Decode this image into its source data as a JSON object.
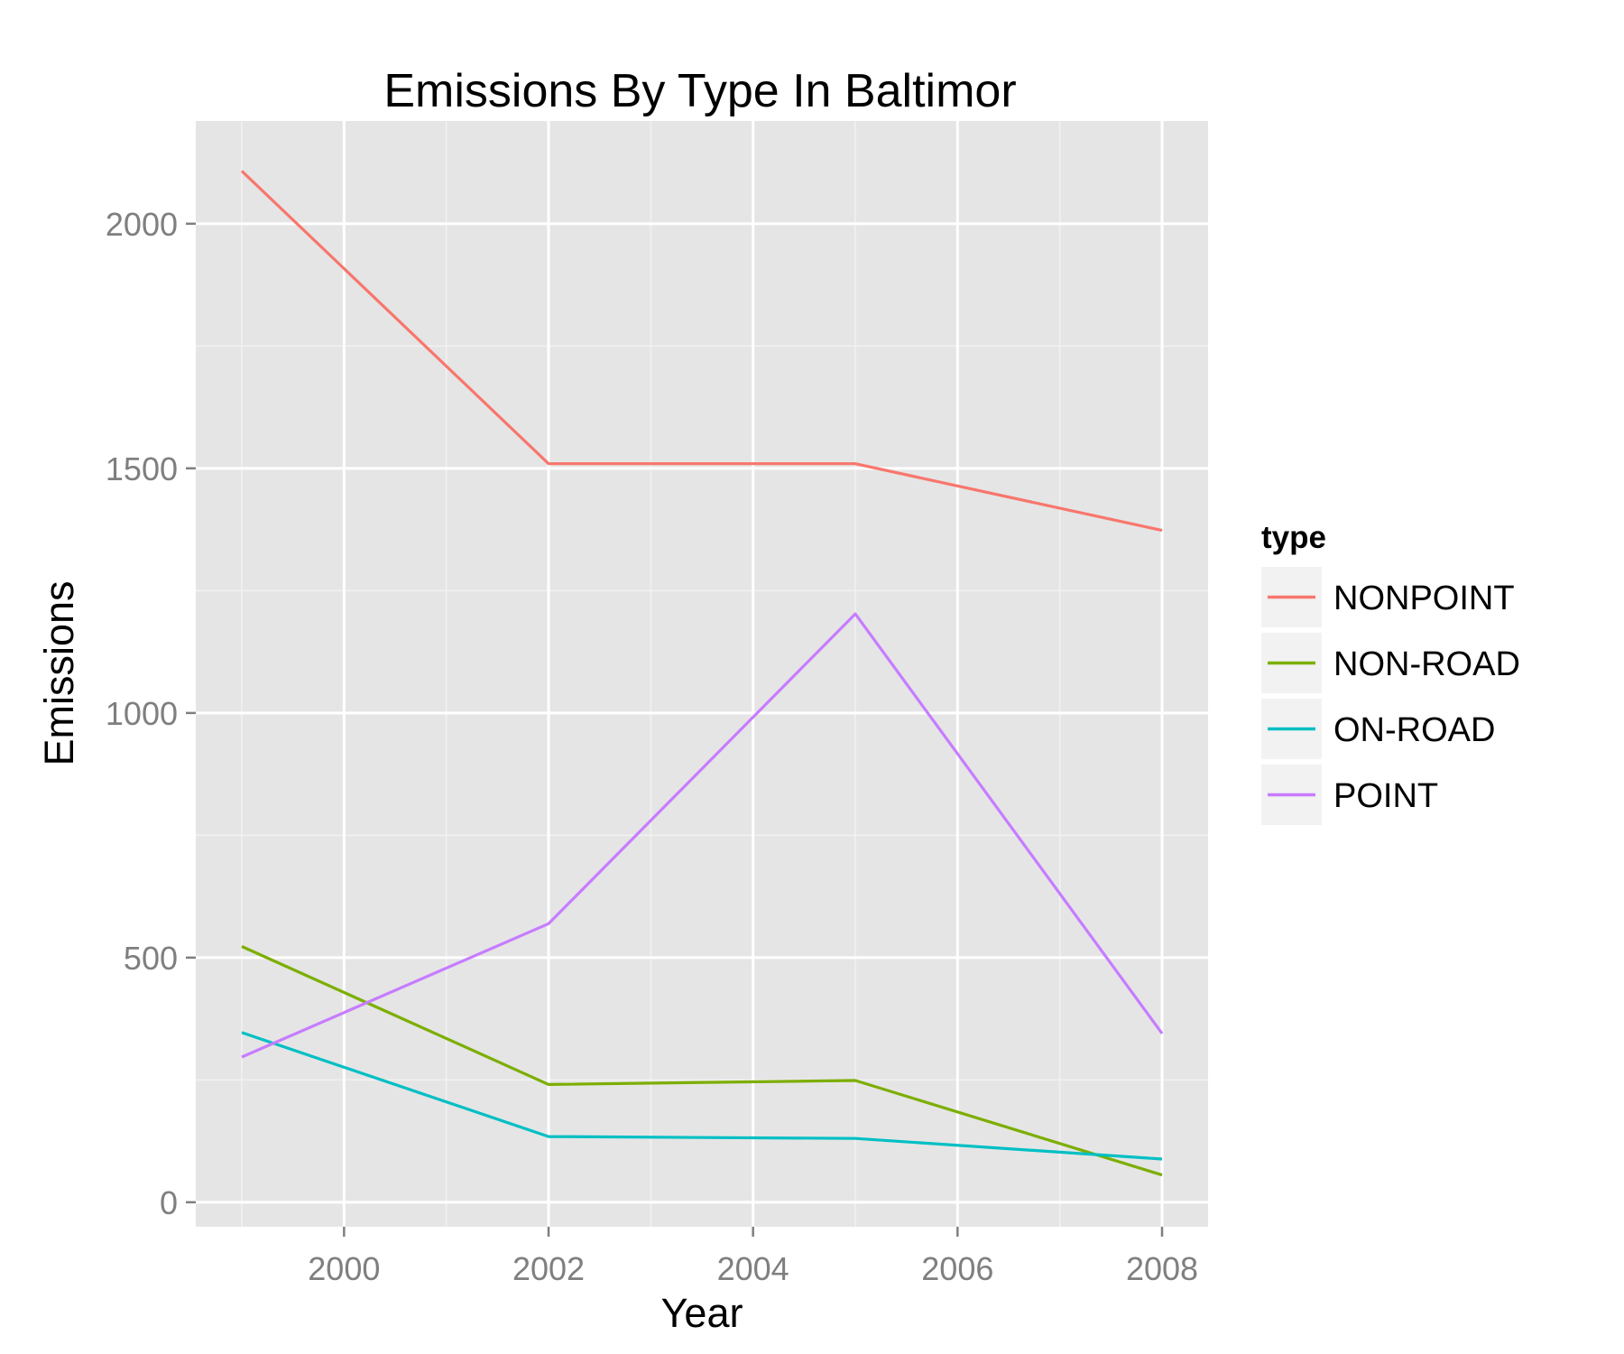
{
  "chart_data": {
    "type": "line",
    "title": "Emissions By Type In Baltimor",
    "xlabel": "Year",
    "ylabel": "Emissions",
    "x": [
      1999,
      2002,
      2005,
      2008
    ],
    "xlim": [
      1998.55,
      2008.45
    ],
    "ylim": [
      -50,
      2210
    ],
    "x_ticks": [
      2000,
      2002,
      2004,
      2006,
      2008
    ],
    "x_tick_labels": [
      "2000",
      "2002",
      "2004",
      "2006",
      "2008"
    ],
    "y_ticks": [
      0,
      500,
      1000,
      1500,
      2000
    ],
    "y_tick_labels": [
      "0",
      "500",
      "1000",
      "1500",
      "2000"
    ],
    "grid": true,
    "legend_title": "type",
    "legend_position": "right",
    "series": [
      {
        "name": "NONPOINT",
        "color": "#F8766D",
        "values": [
          2107.6,
          1509.5,
          1509.5,
          1373.2
        ]
      },
      {
        "name": "NON-ROAD",
        "color": "#7CAE00",
        "values": [
          522.9,
          240.8,
          248.9,
          55.8
        ]
      },
      {
        "name": "ON-ROAD",
        "color": "#00BFC4",
        "values": [
          346.8,
          134.3,
          130.4,
          88.3
        ]
      },
      {
        "name": "POINT",
        "color": "#C77CFF",
        "values": [
          296.8,
          569.3,
          1202.5,
          344.98
        ]
      }
    ]
  }
}
